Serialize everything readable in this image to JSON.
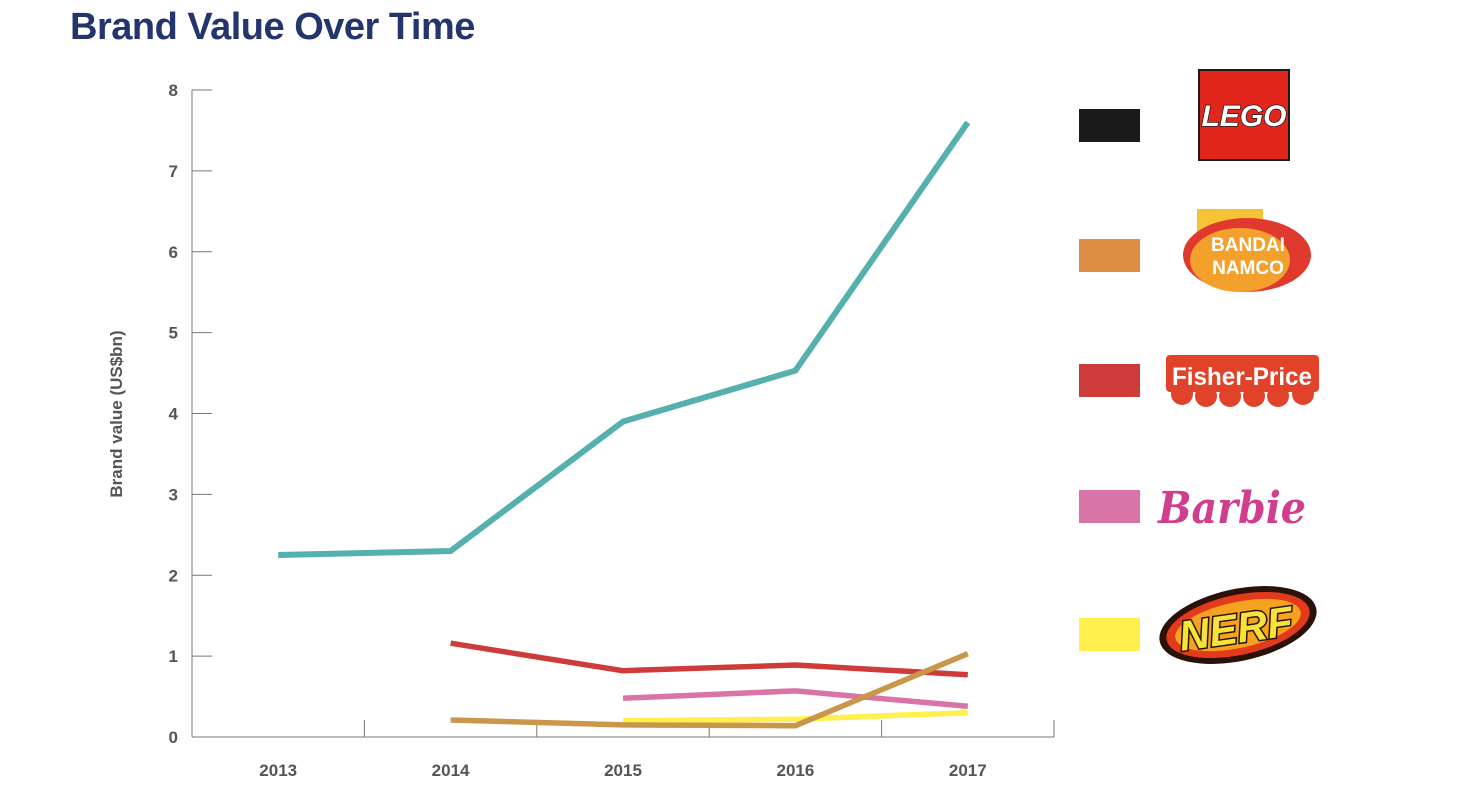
{
  "chart_data": {
    "type": "line",
    "title": "Brand Value Over Time",
    "xlabel": "",
    "ylabel": "Brand value (US$bn)",
    "categories": [
      "2013",
      "2014",
      "2015",
      "2016",
      "2017"
    ],
    "ylim": [
      0,
      8
    ],
    "yticks": [
      0,
      1,
      2,
      3,
      4,
      5,
      6,
      7,
      8
    ],
    "grid": false,
    "legend_position": "right",
    "series": [
      {
        "name": "LEGO",
        "color": "#55b0ae",
        "values": [
          2.25,
          2.3,
          3.9,
          4.53,
          7.6
        ]
      },
      {
        "name": "Fisher-Price",
        "color": "#cd3b3b",
        "values": [
          null,
          1.16,
          0.82,
          0.89,
          0.77
        ]
      },
      {
        "name": "Barbie",
        "color": "#d874a6",
        "values": [
          null,
          null,
          0.48,
          0.57,
          0.38
        ]
      },
      {
        "name": "Bandai Namco",
        "color": "#c9964a",
        "values": [
          null,
          0.21,
          0.15,
          0.14,
          1.03
        ]
      },
      {
        "name": "NERF",
        "color": "#fff04d",
        "values": [
          null,
          null,
          0.2,
          0.22,
          0.3
        ]
      }
    ]
  },
  "legend": [
    {
      "swatch_color": "#1a1a1a",
      "logo_icon": "lego-logo-icon",
      "logo_text": "LEGO"
    },
    {
      "swatch_color": "#de8e45",
      "logo_icon": "bandai-namco-logo-icon",
      "logo_text_line1": "BANDAI",
      "logo_text_line2": "NAMCO"
    },
    {
      "swatch_color": "#cd3b3b",
      "logo_icon": "fisher-price-logo-icon",
      "logo_text": "Fisher-Price"
    },
    {
      "swatch_color": "#d874a6",
      "logo_icon": "barbie-logo-icon",
      "logo_text": "Barbie"
    },
    {
      "swatch_color": "#fff04d",
      "logo_icon": "nerf-logo-icon",
      "logo_text": "NERF"
    }
  ]
}
